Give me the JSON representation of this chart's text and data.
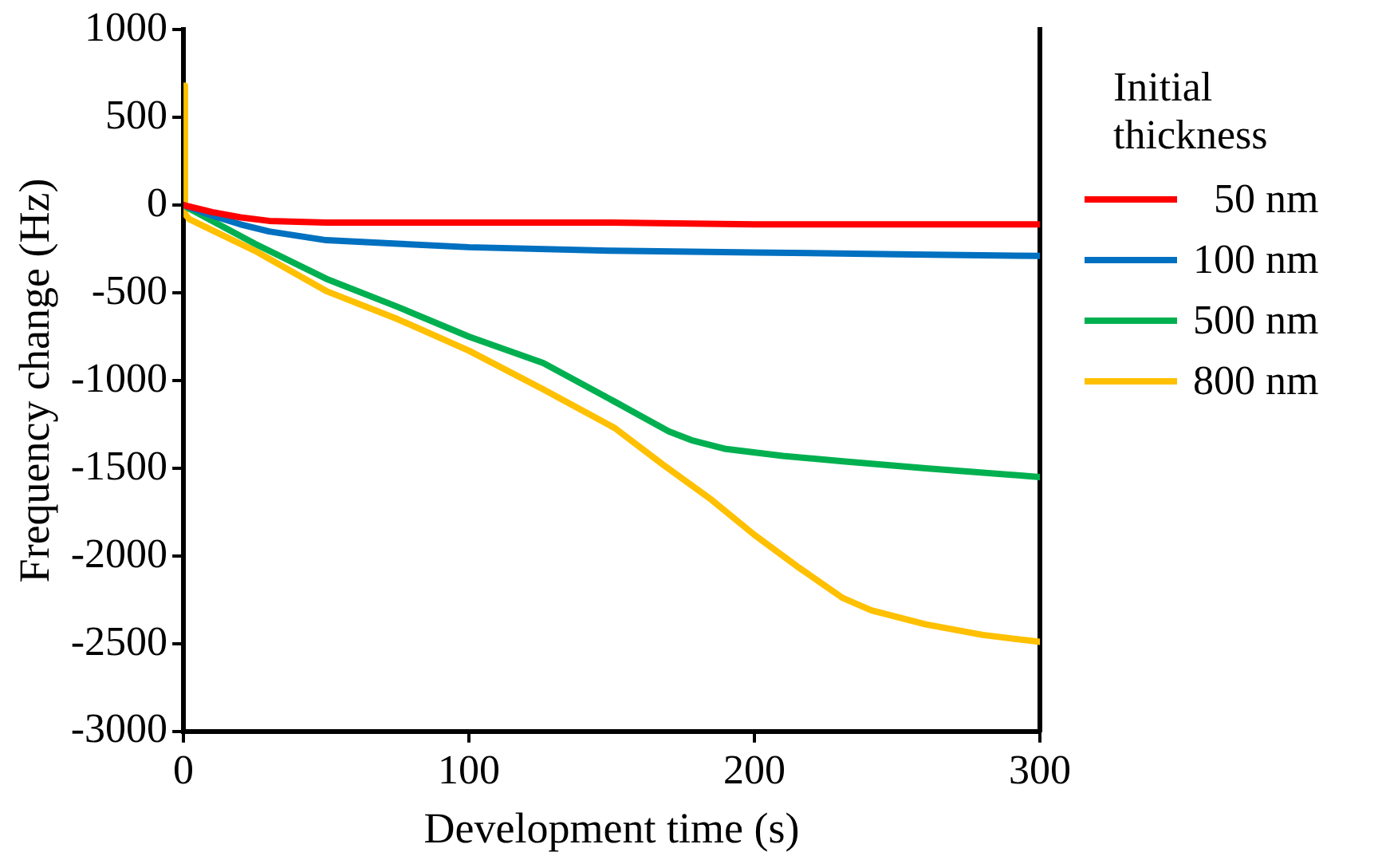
{
  "chart_data": {
    "type": "line",
    "xlabel": "Development time (s)",
    "ylabel": "Frequency change (Hz)",
    "legend_title": "Initial thickness",
    "legend": "right",
    "grid": false,
    "marker": "none",
    "line_style": "solid",
    "xlim": [
      0,
      300
    ],
    "xticks": [
      0,
      100,
      200,
      300
    ],
    "ylim": [
      -3000,
      1000
    ],
    "yticks": [
      -3000,
      -2500,
      -2000,
      -1500,
      -1000,
      -500,
      0,
      500,
      1000
    ],
    "series": [
      {
        "name": "  50 nm",
        "color": "#ff0000",
        "x": [
          0,
          10,
          20,
          30,
          50,
          100,
          150,
          200,
          250,
          300
        ],
        "values": [
          0,
          -40,
          -70,
          -90,
          -100,
          -100,
          -100,
          -110,
          -110,
          -110
        ]
      },
      {
        "name": "100 nm",
        "color": "#0070c0",
        "x": [
          0,
          10,
          20,
          30,
          50,
          75,
          100,
          150,
          200,
          250,
          300
        ],
        "values": [
          0,
          -60,
          -110,
          -150,
          -200,
          -220,
          -240,
          -260,
          -270,
          -280,
          -290
        ]
      },
      {
        "name": "500 nm",
        "color": "#00b050",
        "x": [
          0,
          2,
          25,
          50,
          75,
          100,
          126,
          151,
          170,
          178,
          190,
          210,
          231,
          260,
          300
        ],
        "values": [
          0,
          -20,
          -220,
          -420,
          -580,
          -750,
          -900,
          -1120,
          -1290,
          -1340,
          -1390,
          -1430,
          -1460,
          -1500,
          -1550
        ]
      },
      {
        "name": "800 nm",
        "color": "#ffc000",
        "x": [
          0,
          0.5,
          2,
          25,
          50,
          75,
          100,
          126,
          151,
          168,
          185,
          200,
          215,
          231,
          241,
          260,
          280,
          300
        ],
        "values": [
          680,
          -50,
          -80,
          -260,
          -490,
          -650,
          -830,
          -1050,
          -1270,
          -1480,
          -1680,
          -1880,
          -2060,
          -2240,
          -2310,
          -2390,
          -2450,
          -2490
        ]
      }
    ]
  }
}
